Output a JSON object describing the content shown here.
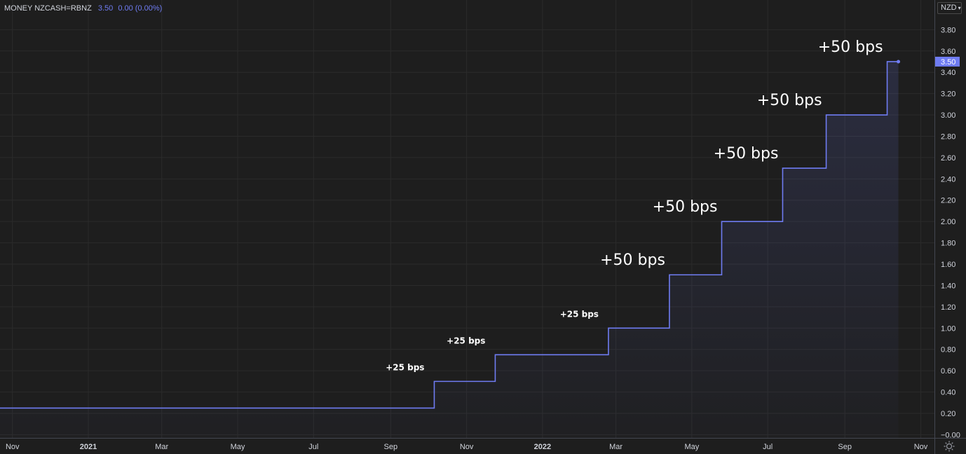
{
  "header": {
    "symbol": "MONEY NZCASH=RBNZ",
    "last": "3.50",
    "change": "0.00 (0.00%)"
  },
  "currency_selector": {
    "label": "NZD",
    "icon": "chevron-down-icon"
  },
  "settings": {
    "icon": "gear-icon"
  },
  "colors": {
    "background": "#1e1e1e",
    "grid": "#2b2b2b",
    "line": "#6f7cf2",
    "axis_text": "#d1d4dc",
    "annotation_text": "#ffffff",
    "price_tag_bg": "#6f7cf2"
  },
  "chart_data": {
    "type": "line",
    "step": true,
    "title": "",
    "xlabel": "",
    "ylabel": "",
    "x_is_date": true,
    "xlim": [
      "2020-10-22",
      "2022-11-12"
    ],
    "ylim": [
      -0.03,
      3.96
    ],
    "grid": true,
    "series": [
      {
        "name": "NZCASH=RBNZ",
        "points": [
          {
            "x": "2020-10-22",
            "y": 0.25
          },
          {
            "x": "2021-10-06",
            "y": 0.5
          },
          {
            "x": "2021-11-24",
            "y": 0.75
          },
          {
            "x": "2022-02-23",
            "y": 1.0
          },
          {
            "x": "2022-04-13",
            "y": 1.5
          },
          {
            "x": "2022-05-25",
            "y": 2.0
          },
          {
            "x": "2022-07-13",
            "y": 2.5
          },
          {
            "x": "2022-08-17",
            "y": 3.0
          },
          {
            "x": "2022-10-05",
            "y": 3.5
          },
          {
            "x": "2022-10-14",
            "y": 3.5
          }
        ]
      }
    ],
    "current_value_label": "3.50",
    "y_ticks": [
      "3.80",
      "3.60",
      "3.40",
      "3.20",
      "3.00",
      "2.80",
      "2.60",
      "2.40",
      "2.20",
      "2.00",
      "1.80",
      "1.60",
      "1.40",
      "1.20",
      "1.00",
      "0.80",
      "0.60",
      "0.40",
      "0.20",
      "−0.00"
    ],
    "y_tick_values": [
      3.8,
      3.6,
      3.4,
      3.2,
      3.0,
      2.8,
      2.6,
      2.4,
      2.2,
      2.0,
      1.8,
      1.6,
      1.4,
      1.2,
      1.0,
      0.8,
      0.6,
      0.4,
      0.2,
      0.0
    ],
    "x_ticks": [
      {
        "label": "Nov",
        "date": "2020-11-01",
        "bold": false
      },
      {
        "label": "2021",
        "date": "2021-01-01",
        "bold": true
      },
      {
        "label": "Mar",
        "date": "2021-03-01",
        "bold": false
      },
      {
        "label": "May",
        "date": "2021-05-01",
        "bold": false
      },
      {
        "label": "Jul",
        "date": "2021-07-01",
        "bold": false
      },
      {
        "label": "Sep",
        "date": "2021-09-01",
        "bold": false
      },
      {
        "label": "Nov",
        "date": "2021-11-01",
        "bold": false
      },
      {
        "label": "2022",
        "date": "2022-01-01",
        "bold": true
      },
      {
        "label": "Mar",
        "date": "2022-03-01",
        "bold": false
      },
      {
        "label": "May",
        "date": "2022-05-01",
        "bold": false
      },
      {
        "label": "Jul",
        "date": "2022-07-01",
        "bold": false
      },
      {
        "label": "Sep",
        "date": "2022-09-01",
        "bold": false
      },
      {
        "label": "Nov",
        "date": "2022-11-01",
        "bold": false
      }
    ],
    "annotations": [
      {
        "text": "+25 bps",
        "x": "2021-10-06",
        "y": 0.5,
        "size": "small"
      },
      {
        "text": "+25 bps",
        "x": "2021-11-24",
        "y": 0.75,
        "size": "small"
      },
      {
        "text": "+25 bps",
        "x": "2022-02-23",
        "y": 1.0,
        "size": "small"
      },
      {
        "text": "+50 bps",
        "x": "2022-04-13",
        "y": 1.5,
        "size": "large"
      },
      {
        "text": "+50 bps",
        "x": "2022-05-25",
        "y": 2.0,
        "size": "large"
      },
      {
        "text": "+50 bps",
        "x": "2022-07-13",
        "y": 2.5,
        "size": "large"
      },
      {
        "text": "+50 bps",
        "x": "2022-08-17",
        "y": 3.0,
        "size": "large"
      },
      {
        "text": "+50 bps",
        "x": "2022-10-05",
        "y": 3.5,
        "size": "large"
      }
    ]
  }
}
